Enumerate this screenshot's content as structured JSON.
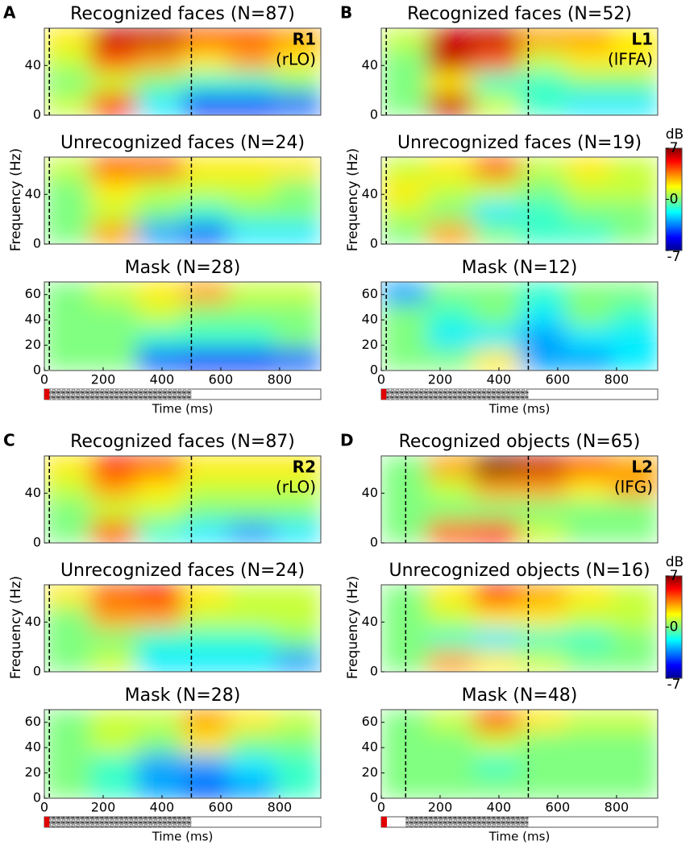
{
  "chart_data": [
    {
      "type": "heatmap",
      "panel": "A",
      "region": "R1",
      "area": "(rLO)",
      "ylabel": "Frequency (Hz)",
      "xlabel": "Time (ms)",
      "xlim": [
        0,
        940
      ],
      "xticks": [
        0,
        200,
        400,
        600,
        800
      ],
      "markers": [
        17,
        500
      ],
      "panels": [
        {
          "title": "Recognized faces (N=87)",
          "ylim": [
            0,
            70
          ],
          "yticks": [
            0,
            40
          ],
          "z": [
            [
              2,
              6,
              6,
              4,
              4,
              3
            ],
            [
              1,
              4,
              3,
              2,
              3,
              2
            ],
            [
              0,
              1,
              0,
              -1,
              -1,
              0
            ],
            [
              1,
              5,
              -2,
              -5,
              -5,
              -4
            ]
          ]
        },
        {
          "title": "Unrecognized faces (N=24)",
          "ylim": [
            0,
            70
          ],
          "yticks": [
            0,
            40
          ],
          "z": [
            [
              1,
              4,
              4,
              2,
              2,
              2
            ],
            [
              0,
              2,
              1,
              1,
              1,
              0
            ],
            [
              0,
              1,
              0,
              -1,
              0,
              0
            ],
            [
              0,
              3,
              -3,
              -4,
              -2,
              -2
            ]
          ]
        },
        {
          "title": "Mask (N=28)",
          "ylim": [
            0,
            70
          ],
          "yticks": [
            0,
            20,
            40,
            60
          ],
          "z": [
            [
              0,
              1,
              2,
              3,
              1,
              1
            ],
            [
              0,
              0,
              1,
              0,
              0,
              0
            ],
            [
              0,
              0,
              -1,
              -1,
              -1,
              0
            ],
            [
              0,
              0,
              -4,
              -5,
              -5,
              -4
            ]
          ]
        }
      ]
    },
    {
      "type": "heatmap",
      "panel": "B",
      "region": "L1",
      "area": "(lFFA)",
      "ylabel": "Frequency (Hz)",
      "xlabel": "Time (ms)",
      "xlim": [
        0,
        940
      ],
      "xticks": [
        0,
        200,
        400,
        600,
        800
      ],
      "markers": [
        17,
        500
      ],
      "colorbar": {
        "label": "dB",
        "lim": [
          -7,
          7
        ],
        "ticks": [
          7,
          0,
          -7
        ]
      },
      "panels": [
        {
          "title": "Recognized faces (N=52)",
          "ylim": [
            0,
            70
          ],
          "yticks": [
            0,
            40
          ],
          "z": [
            [
              1,
              6,
              6,
              3,
              3,
              2
            ],
            [
              0,
              6,
              4,
              1,
              2,
              2
            ],
            [
              0,
              2,
              -1,
              -1,
              0,
              0
            ],
            [
              0,
              6,
              1,
              -1,
              -2,
              -2
            ]
          ]
        },
        {
          "title": "Unrecognized faces (N=19)",
          "ylim": [
            0,
            70
          ],
          "yticks": [
            0,
            40
          ],
          "z": [
            [
              1,
              2,
              4,
              1,
              2,
              1
            ],
            [
              2,
              1,
              1,
              0,
              1,
              1
            ],
            [
              1,
              0,
              -2,
              -1,
              0,
              0
            ],
            [
              0,
              3,
              0,
              -1,
              -1,
              0
            ]
          ]
        },
        {
          "title": "Mask (N=12)",
          "ylim": [
            0,
            70
          ],
          "yticks": [
            0,
            20,
            40,
            60
          ],
          "z": [
            [
              -3,
              0,
              0,
              -1,
              0,
              0
            ],
            [
              0,
              -1,
              0,
              -2,
              0,
              -1
            ],
            [
              0,
              -2,
              -2,
              -3,
              -2,
              -2
            ],
            [
              0,
              0,
              2,
              -3,
              -3,
              -2
            ]
          ]
        }
      ]
    },
    {
      "type": "heatmap",
      "panel": "C",
      "region": "R2",
      "area": "(rLO)",
      "ylabel": "Frequency (Hz)",
      "xlabel": "Time (ms)",
      "xlim": [
        0,
        940
      ],
      "xticks": [
        0,
        200,
        400,
        600,
        800
      ],
      "markers": [
        17,
        500
      ],
      "panels": [
        {
          "title": "Recognized faces (N=87)",
          "ylim": [
            0,
            70
          ],
          "yticks": [
            0,
            40
          ],
          "z": [
            [
              2,
              5,
              4,
              2,
              2,
              2
            ],
            [
              1,
              3,
              2,
              1,
              1,
              1
            ],
            [
              0,
              1,
              1,
              0,
              0,
              0
            ],
            [
              0,
              4,
              -1,
              -2,
              -3,
              -2
            ]
          ]
        },
        {
          "title": "Unrecognized faces (N=24)",
          "ylim": [
            0,
            70
          ],
          "yticks": [
            0,
            40
          ],
          "z": [
            [
              2,
              4,
              5,
              2,
              1,
              1
            ],
            [
              0,
              3,
              3,
              1,
              1,
              1
            ],
            [
              0,
              0,
              -1,
              -1,
              -1,
              0
            ],
            [
              0,
              1,
              -2,
              -2,
              -2,
              -3
            ]
          ]
        },
        {
          "title": "Mask (N=28)",
          "ylim": [
            0,
            70
          ],
          "yticks": [
            0,
            20,
            40,
            60
          ],
          "z": [
            [
              0,
              1,
              1,
              3,
              2,
              1
            ],
            [
              0,
              1,
              0,
              2,
              0,
              0
            ],
            [
              0,
              -1,
              -3,
              -3,
              -2,
              -1
            ],
            [
              0,
              -1,
              -3,
              -4,
              -3,
              -1
            ]
          ]
        }
      ]
    },
    {
      "type": "heatmap",
      "panel": "D",
      "region": "L2",
      "area": "(lFG)",
      "ylabel": "Frequency (Hz)",
      "xlabel": "Time (ms)",
      "xlim": [
        0,
        940
      ],
      "xticks": [
        0,
        200,
        400,
        600,
        800
      ],
      "markers": [
        83,
        500
      ],
      "colorbar": {
        "label": "dB",
        "lim": [
          -7,
          7
        ],
        "ticks": [
          7,
          0,
          -7
        ]
      },
      "panels": [
        {
          "title": "Recognized objects (N=65)",
          "ylim": [
            0,
            70
          ],
          "yticks": [
            0,
            40
          ],
          "z": [
            [
              0,
              3,
              7,
              6,
              4,
              3
            ],
            [
              0,
              1,
              3,
              3,
              2,
              3
            ],
            [
              0,
              0,
              0,
              0,
              0,
              0
            ],
            [
              0,
              4,
              5,
              1,
              0,
              0
            ]
          ]
        },
        {
          "title": "Unrecognized objects (N=16)",
          "ylim": [
            0,
            70
          ],
          "yticks": [
            0,
            40
          ],
          "z": [
            [
              0,
              2,
              5,
              3,
              2,
              1
            ],
            [
              0,
              1,
              2,
              2,
              1,
              1
            ],
            [
              0,
              -1,
              -2,
              -1,
              -1,
              0
            ],
            [
              0,
              3,
              2,
              1,
              0,
              0
            ]
          ]
        },
        {
          "title": "Mask (N=48)",
          "ylim": [
            0,
            70
          ],
          "yticks": [
            0,
            20,
            40,
            60
          ],
          "z": [
            [
              0,
              1,
              4,
              2,
              1,
              1
            ],
            [
              0,
              0,
              1,
              0,
              0,
              0
            ],
            [
              0,
              0,
              -1,
              0,
              0,
              0
            ],
            [
              0,
              0,
              0,
              0,
              0,
              0
            ]
          ]
        }
      ]
    }
  ]
}
